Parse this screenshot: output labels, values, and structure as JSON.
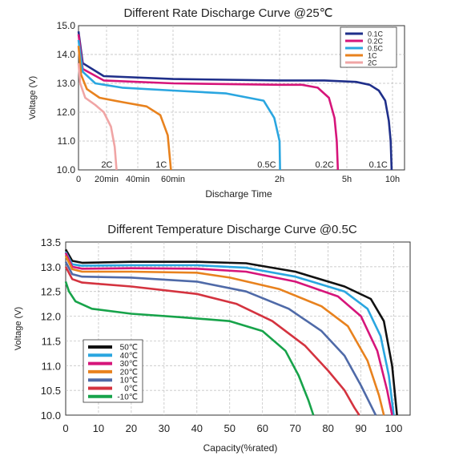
{
  "chart_data": [
    {
      "type": "line",
      "title": "Different Rate Discharge Curve @25℃",
      "xlabel": "Discharge Time",
      "ylabel": "Voltage (V)",
      "xlim": [
        0,
        10.5
      ],
      "ylim": [
        10.0,
        15.0
      ],
      "x_ticks": [
        {
          "x": 0,
          "label": "0"
        },
        {
          "x": 0.333,
          "label": "20min"
        },
        {
          "x": 0.667,
          "label": "40min"
        },
        {
          "x": 1.0,
          "label": "60min"
        },
        {
          "x": 2,
          "label": "2h"
        },
        {
          "x": 5,
          "label": "5h"
        },
        {
          "x": 10,
          "label": "10h"
        }
      ],
      "y_ticks": [
        "10.0",
        "11.0",
        "12.0",
        "13.0",
        "14.0",
        "15.0"
      ],
      "y_tick_values": [
        10,
        11,
        12,
        13,
        14,
        15
      ],
      "grid": true,
      "legend_position": "top-right",
      "series": [
        {
          "name": "0.1C",
          "color": "#1f2f8a",
          "points": [
            [
              0,
              14.8
            ],
            [
              0.05,
              13.7
            ],
            [
              0.3,
              13.25
            ],
            [
              1,
              13.15
            ],
            [
              2,
              13.1
            ],
            [
              4,
              13.1
            ],
            [
              6,
              13.05
            ],
            [
              7.5,
              12.95
            ],
            [
              8.5,
              12.75
            ],
            [
              9.2,
              12.4
            ],
            [
              9.6,
              11.7
            ],
            [
              9.8,
              11.0
            ],
            [
              9.9,
              10.0
            ]
          ],
          "end_label": "0.1C"
        },
        {
          "name": "0.2C",
          "color": "#d6157a",
          "points": [
            [
              0,
              14.7
            ],
            [
              0.05,
              13.5
            ],
            [
              0.3,
              13.1
            ],
            [
              1,
              13.0
            ],
            [
              2,
              12.95
            ],
            [
              3,
              12.95
            ],
            [
              3.7,
              12.85
            ],
            [
              4.2,
              12.5
            ],
            [
              4.45,
              11.8
            ],
            [
              4.55,
              11.0
            ],
            [
              4.6,
              10.0
            ]
          ],
          "end_label": "0.2C"
        },
        {
          "name": "0.5C",
          "color": "#2aa6e0",
          "points": [
            [
              0,
              14.5
            ],
            [
              0.05,
              13.4
            ],
            [
              0.2,
              13.0
            ],
            [
              0.5,
              12.85
            ],
            [
              1,
              12.75
            ],
            [
              1.5,
              12.65
            ],
            [
              1.85,
              12.4
            ],
            [
              1.95,
              11.8
            ],
            [
              2.0,
              11.0
            ],
            [
              2.02,
              10.0
            ]
          ],
          "end_label": "0.5C"
        },
        {
          "name": "1C",
          "color": "#e8821e",
          "points": [
            [
              0,
              14.3
            ],
            [
              0.03,
              13.3
            ],
            [
              0.1,
              12.8
            ],
            [
              0.25,
              12.5
            ],
            [
              0.5,
              12.35
            ],
            [
              0.75,
              12.2
            ],
            [
              0.88,
              11.9
            ],
            [
              0.95,
              11.2
            ],
            [
              0.98,
              10.0
            ]
          ],
          "end_label": "1C"
        },
        {
          "name": "2C",
          "color": "#f0a5a5",
          "points": [
            [
              0,
              13.7
            ],
            [
              0.02,
              13.0
            ],
            [
              0.08,
              12.5
            ],
            [
              0.2,
              12.25
            ],
            [
              0.3,
              12.0
            ],
            [
              0.38,
              11.5
            ],
            [
              0.42,
              10.8
            ],
            [
              0.44,
              10.0
            ]
          ],
          "end_label": "2C"
        }
      ]
    },
    {
      "type": "line",
      "title": "Different Temperature Discharge Curve @0.5C",
      "xlabel": "Capacity(%rated)",
      "ylabel": "Voltage (V)",
      "xlim": [
        0,
        105
      ],
      "ylim": [
        10.0,
        13.5
      ],
      "x_ticks": [
        "0",
        "10",
        "20",
        "30",
        "40",
        "50",
        "60",
        "70",
        "80",
        "90",
        "100"
      ],
      "x_tick_values": [
        0,
        10,
        20,
        30,
        40,
        50,
        60,
        70,
        80,
        90,
        100
      ],
      "y_ticks": [
        "10.0",
        "10.5",
        "11.0",
        "11.5",
        "12.0",
        "12.5",
        "13.0",
        "13.5"
      ],
      "y_tick_values": [
        10,
        10.5,
        11,
        11.5,
        12,
        12.5,
        13,
        13.5
      ],
      "grid": true,
      "legend_position": "bottom-left",
      "series": [
        {
          "name": "50℃",
          "color": "#111111",
          "points": [
            [
              0,
              13.35
            ],
            [
              2,
              13.12
            ],
            [
              5,
              13.08
            ],
            [
              20,
              13.1
            ],
            [
              40,
              13.1
            ],
            [
              55,
              13.07
            ],
            [
              70,
              12.9
            ],
            [
              85,
              12.6
            ],
            [
              93,
              12.35
            ],
            [
              97,
              11.9
            ],
            [
              99.5,
              11.0
            ],
            [
              101,
              10.0
            ]
          ]
        },
        {
          "name": "40℃",
          "color": "#2aa6e0",
          "points": [
            [
              0,
              13.3
            ],
            [
              2,
              13.05
            ],
            [
              5,
              13.02
            ],
            [
              20,
              13.03
            ],
            [
              40,
              13.03
            ],
            [
              55,
              12.98
            ],
            [
              70,
              12.8
            ],
            [
              85,
              12.5
            ],
            [
              92,
              12.15
            ],
            [
              96,
              11.6
            ],
            [
              98.5,
              10.8
            ],
            [
              100,
              10.0
            ]
          ]
        },
        {
          "name": "30℃",
          "color": "#d6157a",
          "points": [
            [
              0,
              13.28
            ],
            [
              2,
              13.0
            ],
            [
              5,
              12.96
            ],
            [
              20,
              12.97
            ],
            [
              40,
              12.96
            ],
            [
              55,
              12.9
            ],
            [
              70,
              12.7
            ],
            [
              83,
              12.4
            ],
            [
              90,
              12.0
            ],
            [
              95,
              11.3
            ],
            [
              98,
              10.5
            ],
            [
              99.5,
              10.0
            ]
          ]
        },
        {
          "name": "20℃",
          "color": "#e8821e",
          "points": [
            [
              0,
              13.22
            ],
            [
              2,
              12.95
            ],
            [
              5,
              12.9
            ],
            [
              20,
              12.9
            ],
            [
              40,
              12.88
            ],
            [
              50,
              12.78
            ],
            [
              65,
              12.55
            ],
            [
              78,
              12.2
            ],
            [
              86,
              11.8
            ],
            [
              92,
              11.1
            ],
            [
              95.5,
              10.4
            ],
            [
              97,
              10.0
            ]
          ]
        },
        {
          "name": "10℃",
          "color": "#4f6aa8",
          "points": [
            [
              0,
              13.1
            ],
            [
              2,
              12.85
            ],
            [
              5,
              12.8
            ],
            [
              20,
              12.78
            ],
            [
              40,
              12.7
            ],
            [
              55,
              12.5
            ],
            [
              68,
              12.15
            ],
            [
              78,
              11.7
            ],
            [
              85,
              11.2
            ],
            [
              90,
              10.6
            ],
            [
              93,
              10.2
            ],
            [
              94.5,
              10.0
            ]
          ]
        },
        {
          "name": "0℃",
          "color": "#d4333f",
          "points": [
            [
              0,
              13.0
            ],
            [
              2,
              12.75
            ],
            [
              5,
              12.68
            ],
            [
              20,
              12.6
            ],
            [
              40,
              12.45
            ],
            [
              52,
              12.25
            ],
            [
              63,
              11.9
            ],
            [
              73,
              11.4
            ],
            [
              80,
              10.9
            ],
            [
              85,
              10.5
            ],
            [
              88,
              10.15
            ],
            [
              89.5,
              10.0
            ]
          ]
        },
        {
          "name": "-10℃",
          "color": "#17a34a",
          "points": [
            [
              0,
              12.7
            ],
            [
              1,
              12.5
            ],
            [
              3,
              12.3
            ],
            [
              8,
              12.15
            ],
            [
              20,
              12.05
            ],
            [
              35,
              11.98
            ],
            [
              50,
              11.9
            ],
            [
              60,
              11.7
            ],
            [
              67,
              11.3
            ],
            [
              71,
              10.8
            ],
            [
              74,
              10.3
            ],
            [
              75.5,
              10.0
            ]
          ]
        }
      ]
    }
  ]
}
